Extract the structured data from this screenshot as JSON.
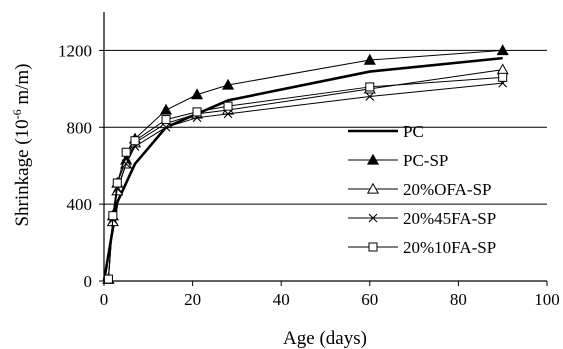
{
  "chart_data": {
    "type": "line",
    "xlabel": "Age (days)",
    "ylabel_main": "Shrinkage (10",
    "ylabel_exp": "-6",
    "ylabel_tail": " m/m)",
    "xlim": [
      0,
      100
    ],
    "ylim": [
      0,
      1400
    ],
    "xticks": [
      0,
      20,
      40,
      60,
      80,
      100
    ],
    "yticks": [
      0,
      400,
      800,
      1200
    ],
    "grid": "horizontal",
    "legend_position": "right",
    "series": [
      {
        "name": "PC",
        "marker": "none",
        "x": [
          0,
          3,
          7,
          14,
          21,
          28,
          60,
          90
        ],
        "y": [
          0,
          410,
          610,
          800,
          870,
          940,
          1090,
          1160
        ]
      },
      {
        "name": "PC-SP",
        "marker": "filled-triangle",
        "x": [
          1,
          2,
          3,
          5,
          7,
          14,
          21,
          28,
          60,
          90
        ],
        "y": [
          10,
          340,
          510,
          630,
          740,
          890,
          970,
          1020,
          1150,
          1200
        ]
      },
      {
        "name": "20%OFA-SP",
        "marker": "open-triangle",
        "x": [
          1,
          2,
          3,
          5,
          7,
          14,
          21,
          28,
          60,
          90
        ],
        "y": [
          10,
          310,
          470,
          610,
          720,
          820,
          870,
          890,
          1000,
          1100
        ]
      },
      {
        "name": "20%45FA-SP",
        "marker": "cross",
        "x": [
          1,
          2,
          3,
          5,
          7,
          14,
          21,
          28,
          60,
          90
        ],
        "y": [
          10,
          320,
          480,
          610,
          700,
          800,
          850,
          870,
          960,
          1030
        ]
      },
      {
        "name": "20%10FA-SP",
        "marker": "open-square",
        "x": [
          1,
          2,
          3,
          5,
          7,
          14,
          21,
          28,
          60,
          90
        ],
        "y": [
          10,
          340,
          510,
          670,
          730,
          840,
          880,
          910,
          1010,
          1060
        ]
      }
    ]
  }
}
